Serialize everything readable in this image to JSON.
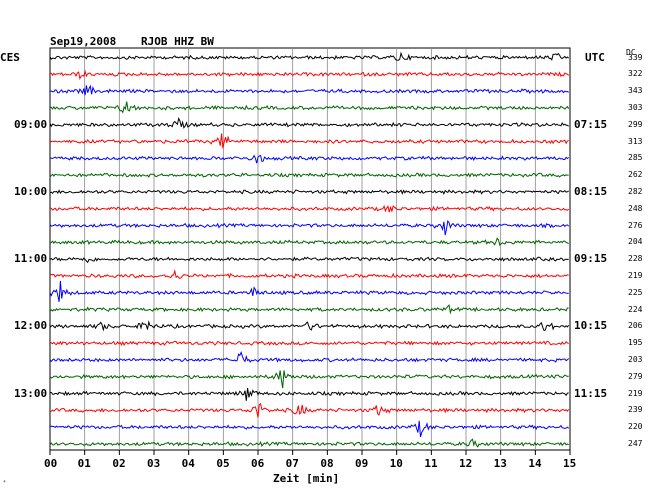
{
  "header": {
    "date": "Sep19,2008",
    "station": "RJOB HHZ BW",
    "left_zone": "CES",
    "right_zone": "UTC",
    "dc_label": "DC"
  },
  "chart_data": {
    "type": "line",
    "title": "Sep19,2008   RJOB HHZ BW",
    "xlabel": "Zeit [min]",
    "x_ticks": [
      "00",
      "01",
      "02",
      "03",
      "04",
      "05",
      "06",
      "07",
      "08",
      "09",
      "10",
      "11",
      "12",
      "13",
      "14",
      "15"
    ],
    "xlim": [
      0,
      15
    ],
    "trace_colors": [
      "#000000",
      "#ff0000",
      "#0000ff",
      "#006400"
    ],
    "left_time_labels": [
      {
        "row": 4,
        "label": "09:00"
      },
      {
        "row": 8,
        "label": "10:00"
      },
      {
        "row": 12,
        "label": "11:00"
      },
      {
        "row": 16,
        "label": "12:00"
      },
      {
        "row": 20,
        "label": "13:00"
      }
    ],
    "right_time_labels": [
      {
        "row": 4,
        "label": "07:15"
      },
      {
        "row": 8,
        "label": "08:15"
      },
      {
        "row": 12,
        "label": "09:15"
      },
      {
        "row": 16,
        "label": "10:15"
      },
      {
        "row": 20,
        "label": "11:15"
      }
    ],
    "dc_values": [
      "339",
      "322",
      "343",
      "303",
      "299",
      "313",
      "285",
      "262",
      "282",
      "248",
      "276",
      "204",
      "228",
      "219",
      "225",
      "224",
      "206",
      "195",
      "203",
      "279",
      "219",
      "239",
      "220",
      "247"
    ],
    "events": [
      {
        "row": 0,
        "minute": 10.1,
        "amp": 5
      },
      {
        "row": 0,
        "minute": 14.6,
        "amp": 4
      },
      {
        "row": 1,
        "minute": 0.9,
        "amp": 4
      },
      {
        "row": 2,
        "minute": 1.1,
        "amp": 7
      },
      {
        "row": 3,
        "minute": 2.2,
        "amp": 9
      },
      {
        "row": 4,
        "minute": 3.7,
        "amp": 7
      },
      {
        "row": 5,
        "minute": 5.0,
        "amp": 10
      },
      {
        "row": 6,
        "minute": 6.0,
        "amp": 6
      },
      {
        "row": 9,
        "minute": 9.8,
        "amp": 4
      },
      {
        "row": 10,
        "minute": 11.4,
        "amp": 9
      },
      {
        "row": 11,
        "minute": 12.9,
        "amp": 4
      },
      {
        "row": 12,
        "minute": 1.1,
        "amp": 3
      },
      {
        "row": 13,
        "minute": 3.6,
        "amp": 5
      },
      {
        "row": 14,
        "minute": 0.3,
        "amp": 12
      },
      {
        "row": 14,
        "minute": 5.9,
        "amp": 5
      },
      {
        "row": 15,
        "minute": 11.5,
        "amp": 3
      },
      {
        "row": 16,
        "minute": 1.5,
        "amp": 4
      },
      {
        "row": 16,
        "minute": 2.8,
        "amp": 8
      },
      {
        "row": 16,
        "minute": 7.5,
        "amp": 5
      },
      {
        "row": 16,
        "minute": 14.3,
        "amp": 7
      },
      {
        "row": 18,
        "minute": 5.5,
        "amp": 10
      },
      {
        "row": 19,
        "minute": 6.7,
        "amp": 12
      },
      {
        "row": 20,
        "minute": 5.7,
        "amp": 9
      },
      {
        "row": 21,
        "minute": 6.0,
        "amp": 10
      },
      {
        "row": 21,
        "minute": 7.2,
        "amp": 8
      },
      {
        "row": 21,
        "minute": 9.5,
        "amp": 7
      },
      {
        "row": 22,
        "minute": 10.7,
        "amp": 9
      },
      {
        "row": 23,
        "minute": 12.2,
        "amp": 4
      }
    ],
    "grid": true
  },
  "footer": {
    "corner_mark": "⁺"
  }
}
